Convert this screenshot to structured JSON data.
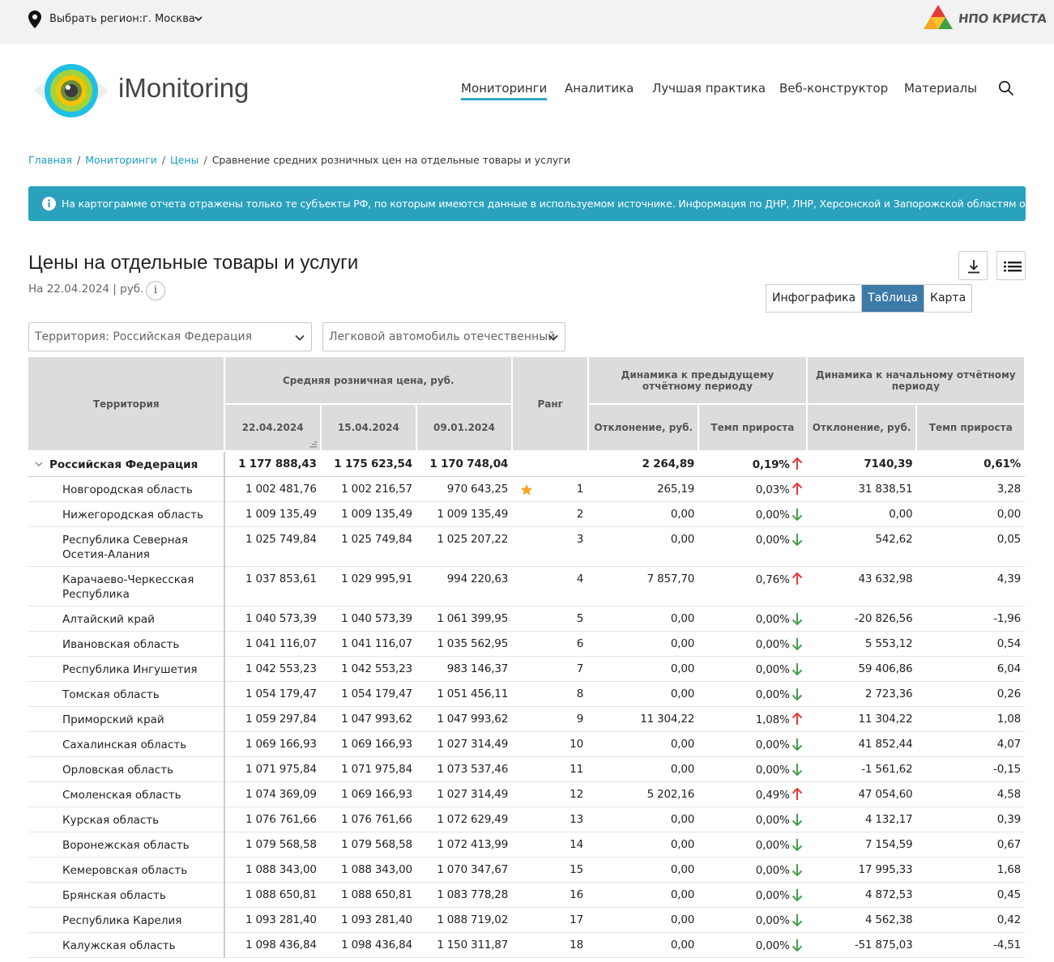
{
  "topbar": {
    "region_label": "Выбрать регион:",
    "region_value": "г. Москва",
    "partner_logo_text": "НПО КРИСТА"
  },
  "header": {
    "brand": "iMonitoring",
    "nav": [
      "Мониторинги",
      "Аналитика",
      "Лучшая практика",
      "Веб-конструктор",
      "Материалы"
    ],
    "active_nav": "Мониторинги"
  },
  "breadcrumb": {
    "items": [
      "Главная",
      "Мониторинги",
      "Цены"
    ],
    "current": "Сравнение средних розничных цен на отдельные товары и услуги"
  },
  "alert": {
    "text": "На картограмме отчета отражены только те субъекты РФ, по которым имеются данные в используемом источнике. Информация по ДНР, ЛНР, Херсонской и Запорожской областям отсутствует."
  },
  "report": {
    "title": "Цены на отдельные товары и услуги",
    "subtitle": "На 22.04.2024 | руб.",
    "info_glyph": "i",
    "views": [
      "Инфографика",
      "Таблица",
      "Карта"
    ],
    "active_view": "Таблица",
    "filter_territory": "Территория: Российская  Федерация",
    "filter_product": "Легковой автомобиль отечественный"
  },
  "colors": {
    "accent": "#2aa7c9",
    "alert_bg": "#2aa1bd",
    "active_tab": "#3d7aa8",
    "up_arrow": "#e53935",
    "down_arrow": "#43a047",
    "star": "#f5a623"
  },
  "table": {
    "headers": {
      "territory": "Территория",
      "avg_price": "Средняя розничная цена, руб.",
      "dates": [
        "22.04.2024",
        "15.04.2024",
        "09.01.2024"
      ],
      "rank": "Ранг",
      "dyn_prev": "Динамика к предыдущему отчётному периоду",
      "dyn_start": "Динамика к начальному отчётному периоду",
      "deviation": "Отклонение, руб.",
      "growth": "Темп прироста"
    },
    "total": {
      "name": "Российская Федерация",
      "p1": "1 177 888,43",
      "p2": "1 175 623,54",
      "p3": "1 170 748,04",
      "rank": "",
      "dev_prev": "2 264,89",
      "growth_prev": "0,19%",
      "dir_prev": "up",
      "dev_start": "7140,39",
      "growth_start": "0,61%"
    },
    "rows": [
      {
        "name": "Новгородская область",
        "p1": "1 002 481,76",
        "p2": "1 002 216,57",
        "p3": "970 643,25",
        "rank": "1",
        "star": true,
        "dev_prev": "265,19",
        "growth_prev": "0,03%",
        "dir_prev": "up",
        "dev_start": "31 838,51",
        "growth_start": "3,28"
      },
      {
        "name": "Нижегородская область",
        "p1": "1 009 135,49",
        "p2": "1 009 135,49",
        "p3": "1 009 135,49",
        "rank": "2",
        "dev_prev": "0,00",
        "growth_prev": "0,00%",
        "dir_prev": "down",
        "dev_start": "0,00",
        "growth_start": "0,00"
      },
      {
        "name": "Республика Северная Осетия-Алания",
        "p1": "1 025 749,84",
        "p2": "1 025 749,84",
        "p3": "1 025 207,22",
        "rank": "3",
        "dev_prev": "0,00",
        "growth_prev": "0,00%",
        "dir_prev": "down",
        "dev_start": "542,62",
        "growth_start": "0,05"
      },
      {
        "name": "Карачаево-Черкесская Республика",
        "p1": "1 037 853,61",
        "p2": "1 029 995,91",
        "p3": "994 220,63",
        "rank": "4",
        "dev_prev": "7 857,70",
        "growth_prev": "0,76%",
        "dir_prev": "up",
        "dev_start": "43 632,98",
        "growth_start": "4,39"
      },
      {
        "name": "Алтайский край",
        "p1": "1 040 573,39",
        "p2": "1 040 573,39",
        "p3": "1 061 399,95",
        "rank": "5",
        "dev_prev": "0,00",
        "growth_prev": "0,00%",
        "dir_prev": "down",
        "dev_start": "-20 826,56",
        "growth_start": "-1,96"
      },
      {
        "name": "Ивановская область",
        "p1": "1 041 116,07",
        "p2": "1 041 116,07",
        "p3": "1 035 562,95",
        "rank": "6",
        "dev_prev": "0,00",
        "growth_prev": "0,00%",
        "dir_prev": "down",
        "dev_start": "5 553,12",
        "growth_start": "0,54"
      },
      {
        "name": "Республика Ингушетия",
        "p1": "1 042 553,23",
        "p2": "1 042 553,23",
        "p3": "983 146,37",
        "rank": "7",
        "dev_prev": "0,00",
        "growth_prev": "0,00%",
        "dir_prev": "down",
        "dev_start": "59 406,86",
        "growth_start": "6,04"
      },
      {
        "name": "Томская область",
        "p1": "1 054 179,47",
        "p2": "1 054 179,47",
        "p3": "1 051 456,11",
        "rank": "8",
        "dev_prev": "0,00",
        "growth_prev": "0,00%",
        "dir_prev": "down",
        "dev_start": "2 723,36",
        "growth_start": "0,26"
      },
      {
        "name": "Приморский край",
        "p1": "1 059 297,84",
        "p2": "1 047 993,62",
        "p3": "1 047 993,62",
        "rank": "9",
        "dev_prev": "11 304,22",
        "growth_prev": "1,08%",
        "dir_prev": "up",
        "dev_start": "11 304,22",
        "growth_start": "1,08"
      },
      {
        "name": "Сахалинская область",
        "p1": "1 069 166,93",
        "p2": "1 069 166,93",
        "p3": "1 027 314,49",
        "rank": "10",
        "dev_prev": "0,00",
        "growth_prev": "0,00%",
        "dir_prev": "down",
        "dev_start": "41 852,44",
        "growth_start": "4,07"
      },
      {
        "name": "Орловская область",
        "p1": "1 071 975,84",
        "p2": "1 071 975,84",
        "p3": "1 073 537,46",
        "rank": "11",
        "dev_prev": "0,00",
        "growth_prev": "0,00%",
        "dir_prev": "down",
        "dev_start": "-1 561,62",
        "growth_start": "-0,15"
      },
      {
        "name": "Смоленская область",
        "p1": "1 074 369,09",
        "p2": "1 069 166,93",
        "p3": "1 027 314,49",
        "rank": "12",
        "dev_prev": "5 202,16",
        "growth_prev": "0,49%",
        "dir_prev": "up",
        "dev_start": "47 054,60",
        "growth_start": "4,58"
      },
      {
        "name": "Курская область",
        "p1": "1 076 761,66",
        "p2": "1 076 761,66",
        "p3": "1 072 629,49",
        "rank": "13",
        "dev_prev": "0,00",
        "growth_prev": "0,00%",
        "dir_prev": "down",
        "dev_start": "4 132,17",
        "growth_start": "0,39"
      },
      {
        "name": "Воронежская область",
        "p1": "1 079 568,58",
        "p2": "1 079 568,58",
        "p3": "1 072 413,99",
        "rank": "14",
        "dev_prev": "0,00",
        "growth_prev": "0,00%",
        "dir_prev": "down",
        "dev_start": "7 154,59",
        "growth_start": "0,67"
      },
      {
        "name": "Кемеровская область",
        "p1": "1 088 343,00",
        "p2": "1 088 343,00",
        "p3": "1 070 347,67",
        "rank": "15",
        "dev_prev": "0,00",
        "growth_prev": "0,00%",
        "dir_prev": "down",
        "dev_start": "17 995,33",
        "growth_start": "1,68"
      },
      {
        "name": "Брянская область",
        "p1": "1 088 650,81",
        "p2": "1 088 650,81",
        "p3": "1 083 778,28",
        "rank": "16",
        "dev_prev": "0,00",
        "growth_prev": "0,00%",
        "dir_prev": "down",
        "dev_start": "4 872,53",
        "growth_start": "0,45"
      },
      {
        "name": "Республика Карелия",
        "p1": "1 093 281,40",
        "p2": "1 093 281,40",
        "p3": "1 088 719,02",
        "rank": "17",
        "dev_prev": "0,00",
        "growth_prev": "0,00%",
        "dir_prev": "down",
        "dev_start": "4 562,38",
        "growth_start": "0,42"
      },
      {
        "name": "Калужская область",
        "p1": "1 098 436,84",
        "p2": "1 098 436,84",
        "p3": "1 150 311,87",
        "rank": "18",
        "dev_prev": "0,00",
        "growth_prev": "0,00%",
        "dir_prev": "down",
        "dev_start": "-51 875,03",
        "growth_start": "-4,51"
      }
    ]
  }
}
